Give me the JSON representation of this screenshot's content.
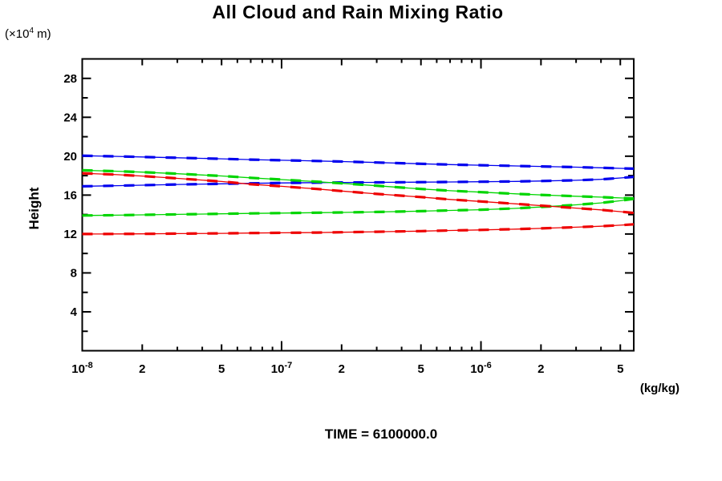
{
  "chart_data": {
    "type": "line",
    "title": "All Cloud and Rain Mixing Ratio",
    "ylabel": "Height",
    "y_axis_unit": {
      "pre": "(×10",
      "sup": "4",
      "post": " m)"
    },
    "x_unit_label": "(kg/kg)",
    "time_label": "TIME = 6100000.0",
    "x_scale": "log",
    "xlim": [
      1e-08,
      5.84e-06
    ],
    "ylim": [
      0,
      30
    ],
    "grid": false,
    "legend": "none",
    "axis_color": "#000000",
    "x_decade_ticks": [
      {
        "v": 1e-08,
        "pre": "10",
        "sup": "-8"
      },
      {
        "v": 1e-07,
        "pre": "10",
        "sup": "-7"
      },
      {
        "v": 1e-06,
        "pre": "10",
        "sup": "-6"
      }
    ],
    "x_labeled_ticks": [
      {
        "v": 2e-08,
        "label": "2"
      },
      {
        "v": 5e-08,
        "label": "5"
      },
      {
        "v": 2e-07,
        "label": "2"
      },
      {
        "v": 5e-07,
        "label": "5"
      },
      {
        "v": 2e-06,
        "label": "2"
      },
      {
        "v": 5e-06,
        "label": "5"
      }
    ],
    "x_minor_ticks": [
      3e-08,
      4e-08,
      6e-08,
      7e-08,
      8e-08,
      9e-08,
      3e-07,
      4e-07,
      6e-07,
      7e-07,
      8e-07,
      9e-07,
      3e-06,
      4e-06
    ],
    "y_major_ticks": [
      {
        "v": 4,
        "label": "4"
      },
      {
        "v": 8,
        "label": "8"
      },
      {
        "v": 12,
        "label": "12"
      },
      {
        "v": 16,
        "label": "16"
      },
      {
        "v": 20,
        "label": "20"
      },
      {
        "v": 24,
        "label": "24"
      },
      {
        "v": 28,
        "label": "28"
      }
    ],
    "y_minor_ticks": [
      2,
      6,
      10,
      14,
      18,
      22,
      26
    ],
    "x": [
      1e-08,
      1.5e-08,
      2e-08,
      3e-08,
      5e-08,
      7e-08,
      1e-07,
      1.5e-07,
      2e-07,
      3e-07,
      5e-07,
      7e-07,
      1e-06,
      1.5e-06,
      2e-06,
      3e-06,
      4e-06,
      5e-06,
      5.84e-06
    ],
    "series": [
      {
        "name": "blue-upper",
        "color": "#0000ee",
        "y": [
          20.05,
          19.98,
          19.92,
          19.84,
          19.73,
          19.65,
          19.58,
          19.51,
          19.45,
          19.35,
          19.22,
          19.14,
          19.07,
          19.0,
          18.95,
          18.87,
          18.81,
          18.75,
          18.72
        ]
      },
      {
        "name": "blue-lower",
        "color": "#0000ee",
        "y": [
          16.9,
          16.97,
          17.02,
          17.09,
          17.16,
          17.21,
          17.25,
          17.28,
          17.3,
          17.31,
          17.33,
          17.35,
          17.37,
          17.41,
          17.45,
          17.52,
          17.62,
          17.76,
          17.88
        ]
      },
      {
        "name": "green-upper",
        "color": "#00d500",
        "y": [
          18.55,
          18.45,
          18.36,
          18.2,
          17.97,
          17.78,
          17.6,
          17.38,
          17.21,
          16.96,
          16.63,
          16.45,
          16.3,
          16.13,
          16.02,
          15.88,
          15.79,
          15.71,
          15.66
        ]
      },
      {
        "name": "green-lower",
        "color": "#00d500",
        "y": [
          13.9,
          13.94,
          13.97,
          14.02,
          14.08,
          14.12,
          14.15,
          14.19,
          14.22,
          14.27,
          14.35,
          14.42,
          14.5,
          14.64,
          14.78,
          15.0,
          15.2,
          15.42,
          15.62
        ]
      },
      {
        "name": "red-upper",
        "color": "#ee0000",
        "y": [
          18.25,
          18.1,
          17.96,
          17.72,
          17.4,
          17.12,
          16.9,
          16.63,
          16.42,
          16.12,
          15.8,
          15.55,
          15.35,
          15.1,
          14.92,
          14.66,
          14.48,
          14.3,
          14.17
        ]
      },
      {
        "name": "red-lower",
        "color": "#ee0000",
        "y": [
          12.0,
          12.01,
          12.02,
          12.04,
          12.07,
          12.1,
          12.12,
          12.15,
          12.18,
          12.23,
          12.3,
          12.36,
          12.42,
          12.5,
          12.58,
          12.7,
          12.8,
          12.91,
          13.0
        ]
      }
    ]
  }
}
